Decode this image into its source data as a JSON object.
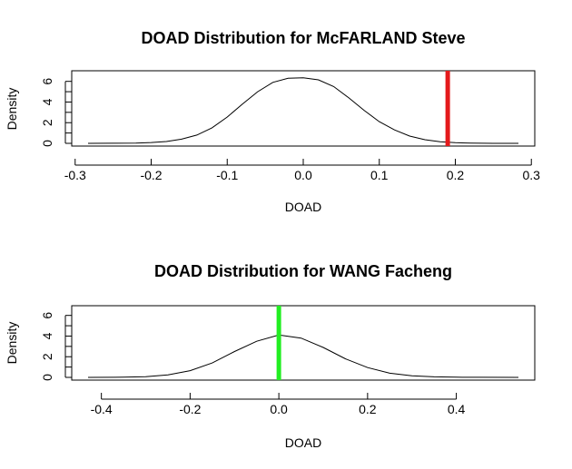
{
  "chart_data": [
    {
      "type": "line",
      "title": "DOAD Distribution for McFARLAND Steve",
      "xlabel": "DOAD",
      "ylabel": "Density",
      "xlim": [
        -0.3,
        0.3
      ],
      "ylim": [
        0,
        6.5
      ],
      "x_ticks": [
        -0.3,
        -0.2,
        -0.1,
        0.0,
        0.1,
        0.2,
        0.3
      ],
      "x_tick_labels": [
        "-0.3",
        "-0.2",
        "-0.1",
        "0.0",
        "0.1",
        "0.2",
        "0.3"
      ],
      "y_ticks": [
        0,
        2,
        4,
        6
      ],
      "y_tick_labels": [
        "0",
        "2",
        "4",
        "6"
      ],
      "series": [
        {
          "x": [
            -0.283,
            -0.25,
            -0.22,
            -0.2,
            -0.18,
            -0.16,
            -0.14,
            -0.12,
            -0.1,
            -0.08,
            -0.06,
            -0.04,
            -0.02,
            0.0,
            0.02,
            0.04,
            0.06,
            0.08,
            0.1,
            0.12,
            0.14,
            0.16,
            0.18,
            0.2,
            0.22,
            0.25,
            0.283
          ],
          "y": [
            0.0,
            0.01,
            0.03,
            0.08,
            0.18,
            0.4,
            0.8,
            1.5,
            2.55,
            3.8,
            5.0,
            5.9,
            6.3,
            6.35,
            6.15,
            5.5,
            4.4,
            3.2,
            2.1,
            1.3,
            0.7,
            0.35,
            0.15,
            0.06,
            0.02,
            0.0,
            0.0
          ]
        }
      ],
      "marker": {
        "x": 0.19,
        "color": "#e41a1c"
      }
    },
    {
      "type": "line",
      "title": "DOAD Distribution for WANG Facheng",
      "xlabel": "DOAD",
      "ylabel": "Density",
      "xlim": [
        -0.45,
        0.55
      ],
      "ylim": [
        0,
        6.5
      ],
      "x_ticks": [
        -0.4,
        -0.2,
        0.0,
        0.2,
        0.4
      ],
      "x_tick_labels": [
        "-0.4",
        "-0.2",
        "0.0",
        "0.2",
        "0.4"
      ],
      "y_ticks": [
        0,
        2,
        4,
        6
      ],
      "y_tick_labels": [
        "0",
        "2",
        "4",
        "6"
      ],
      "series": [
        {
          "x": [
            -0.43,
            -0.35,
            -0.3,
            -0.25,
            -0.2,
            -0.15,
            -0.1,
            -0.05,
            0.0,
            0.05,
            0.1,
            0.15,
            0.2,
            0.25,
            0.3,
            0.35,
            0.4,
            0.45,
            0.54
          ],
          "y": [
            0.0,
            0.02,
            0.07,
            0.25,
            0.65,
            1.4,
            2.5,
            3.5,
            4.1,
            3.8,
            2.9,
            1.8,
            0.95,
            0.4,
            0.15,
            0.05,
            0.02,
            0.01,
            0.0
          ]
        }
      ],
      "marker": {
        "x": 0.0,
        "color": "#22ee22"
      }
    }
  ]
}
